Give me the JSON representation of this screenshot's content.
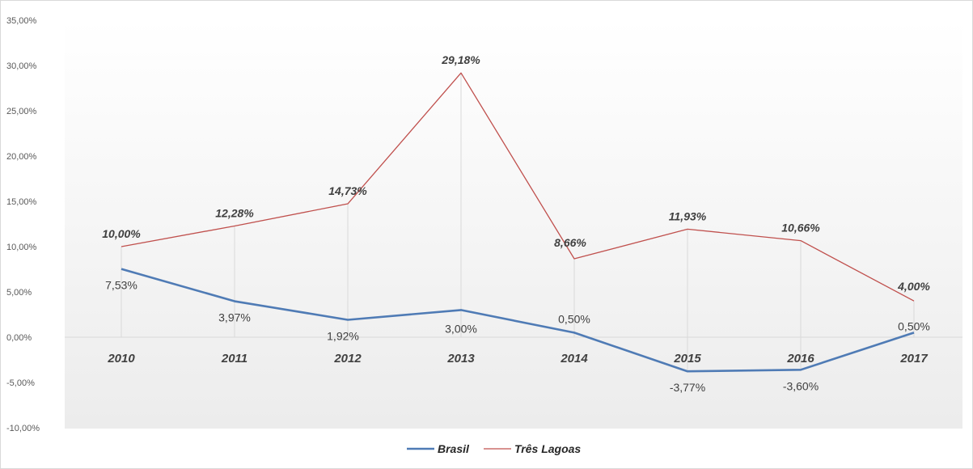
{
  "chart_data": {
    "type": "line",
    "categories": [
      "2010",
      "2011",
      "2012",
      "2013",
      "2014",
      "2015",
      "2016",
      "2017"
    ],
    "ylim": [
      -10,
      35
    ],
    "yticks": [
      35,
      30,
      25,
      20,
      15,
      10,
      5,
      0,
      -5,
      -10
    ],
    "ytick_labels": [
      "35,00%",
      "30,00%",
      "25,00%",
      "20,00%",
      "15,00%",
      "10,00%",
      "5,00%",
      "0,00%",
      "-5,00%",
      "-10,00%"
    ],
    "grid": "vertical-drop-lines",
    "legend_position": "bottom-center",
    "series": [
      {
        "name": "Brasil",
        "color": "#4f7bb5",
        "values": [
          7.53,
          3.97,
          1.92,
          3.0,
          0.5,
          -3.77,
          -3.6,
          0.5
        ],
        "labels": [
          "7,53%",
          "3,97%",
          "1,92%",
          "3,00%",
          "0,50%",
          "-3,77%",
          "-3,60%",
          "0,50%"
        ]
      },
      {
        "name": "Três Lagoas",
        "color": "#c0504d",
        "values": [
          10.0,
          12.28,
          14.73,
          29.18,
          8.66,
          11.93,
          10.66,
          4.0
        ],
        "labels": [
          "10,00%",
          "12,28%",
          "14,73%",
          "29,18%",
          "8,66%",
          "11,93%",
          "10,66%",
          "4,00%"
        ]
      }
    ]
  }
}
